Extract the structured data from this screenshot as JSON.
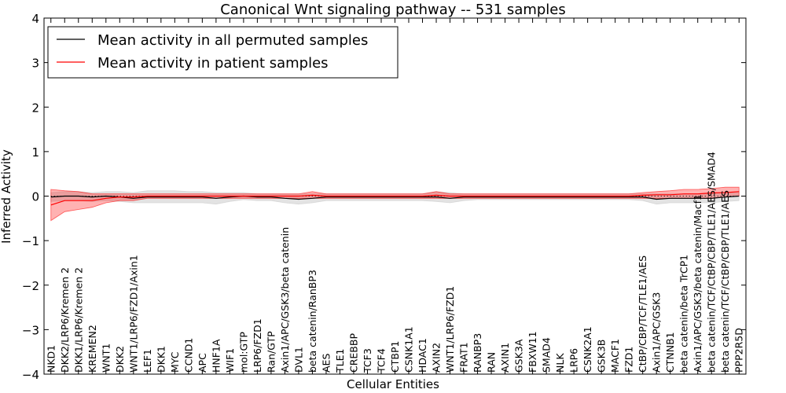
{
  "chart_data": {
    "type": "line",
    "title": "Canonical Wnt signaling pathway -- 531 samples",
    "xlabel": "Cellular Entities",
    "ylabel": "Inferred Activity",
    "ylim": [
      -4,
      4
    ],
    "yticks": [
      "4",
      "3",
      "2",
      "1",
      "0",
      "−1",
      "−2",
      "−3",
      "−4"
    ],
    "grid": false,
    "legend_position": "top-left",
    "categories": [
      "NKD1",
      "DKK2/LRP6/Kremen 2",
      "DKK1/LRP6/Kremen 2",
      "KREMEN2",
      "WNT1",
      "DKK2",
      "WNT1/LRP6/FZD1/Axin1",
      "LEF1",
      "DKK1",
      "MYC",
      "CCND1",
      "APC",
      "HNF1A",
      "WIF1",
      "mol:GTP",
      "LRP6/FZD1",
      "Ran/GTP",
      "Axin1/APC/GSK3/beta catenin",
      "DVL1",
      "beta catenin/RanBP3",
      "AES",
      "TLE1",
      "CREBBP",
      "TCF3",
      "TCF4",
      "CTBP1",
      "CSNK1A1",
      "HDAC1",
      "AXIN2",
      "WNT1/LRP6/FZD1",
      "FRAT1",
      "RANBP3",
      "RAN",
      "AXIN1",
      "GSK3A",
      "FBXW11",
      "SMAD4",
      "NLK",
      "LRP6",
      "CSNK2A1",
      "GSK3B",
      "MACF1",
      "FZD1",
      "CtBP/CBP/TCF/TLE1/AES",
      "Axin1/APC/GSK3",
      "CTNNB1",
      "beta catenin/beta TrCP1",
      "Axin1/APC/GSK3/beta catenin/Macf1",
      "beta catenin/TCF/CtBP/CBP/TLE1/AES/SMAD4",
      "beta catenin/TCF/CtBP/CBP/TLE1/AES",
      "PPP2R5D"
    ],
    "series": [
      {
        "name": "Mean activity in all permuted samples",
        "color": "#000000",
        "values": [
          -0.02,
          0.0,
          0.0,
          -0.02,
          0.0,
          -0.02,
          -0.05,
          -0.02,
          -0.02,
          -0.02,
          -0.02,
          -0.02,
          -0.05,
          -0.02,
          0.0,
          -0.02,
          -0.02,
          -0.05,
          -0.07,
          -0.05,
          -0.02,
          -0.02,
          -0.02,
          -0.02,
          -0.02,
          -0.02,
          -0.02,
          -0.02,
          -0.02,
          -0.05,
          -0.02,
          -0.02,
          -0.02,
          -0.02,
          -0.02,
          -0.02,
          -0.02,
          -0.02,
          -0.02,
          -0.02,
          -0.02,
          -0.02,
          -0.02,
          -0.02,
          -0.07,
          -0.05,
          -0.05,
          -0.05,
          -0.05,
          -0.02,
          0.0
        ],
        "band_upper": [
          0.08,
          0.1,
          0.1,
          0.08,
          0.1,
          0.1,
          0.08,
          0.12,
          0.12,
          0.12,
          0.1,
          0.1,
          0.08,
          0.08,
          0.08,
          0.05,
          0.05,
          0.05,
          0.05,
          0.05,
          0.05,
          0.05,
          0.05,
          0.05,
          0.05,
          0.05,
          0.05,
          0.05,
          0.1,
          0.08,
          0.05,
          0.05,
          0.05,
          0.05,
          0.05,
          0.05,
          0.05,
          0.05,
          0.05,
          0.05,
          0.05,
          0.05,
          0.05,
          0.05,
          0.05,
          0.05,
          0.05,
          0.05,
          0.05,
          0.05,
          0.1
        ],
        "band_lower": [
          -0.12,
          -0.1,
          -0.1,
          -0.12,
          -0.1,
          -0.12,
          -0.15,
          -0.15,
          -0.15,
          -0.15,
          -0.15,
          -0.15,
          -0.18,
          -0.12,
          -0.08,
          -0.1,
          -0.1,
          -0.15,
          -0.18,
          -0.15,
          -0.1,
          -0.1,
          -0.1,
          -0.1,
          -0.1,
          -0.1,
          -0.1,
          -0.1,
          -0.12,
          -0.15,
          -0.1,
          -0.08,
          -0.08,
          -0.08,
          -0.08,
          -0.08,
          -0.08,
          -0.08,
          -0.08,
          -0.08,
          -0.08,
          -0.08,
          -0.08,
          -0.1,
          -0.18,
          -0.15,
          -0.15,
          -0.15,
          -0.15,
          -0.12,
          -0.1
        ]
      },
      {
        "name": "Mean activity in patient samples",
        "color": "#ff0000",
        "values": [
          -0.2,
          -0.1,
          -0.1,
          -0.1,
          -0.05,
          -0.02,
          -0.02,
          0.0,
          0.0,
          0.0,
          0.0,
          0.0,
          0.0,
          0.0,
          0.0,
          0.0,
          0.0,
          0.0,
          0.0,
          0.02,
          0.0,
          0.0,
          0.0,
          0.0,
          0.0,
          0.0,
          0.0,
          0.0,
          0.02,
          0.0,
          0.0,
          0.0,
          0.0,
          0.0,
          0.0,
          0.0,
          0.0,
          0.0,
          0.0,
          0.0,
          0.0,
          0.0,
          0.0,
          0.02,
          0.03,
          0.03,
          0.05,
          0.05,
          0.07,
          0.08,
          0.1
        ],
        "band_upper": [
          0.15,
          0.12,
          0.1,
          0.05,
          0.05,
          0.05,
          0.05,
          0.05,
          0.05,
          0.05,
          0.05,
          0.05,
          0.05,
          0.05,
          0.05,
          0.05,
          0.05,
          0.05,
          0.05,
          0.1,
          0.05,
          0.05,
          0.05,
          0.05,
          0.05,
          0.05,
          0.05,
          0.05,
          0.1,
          0.05,
          0.05,
          0.05,
          0.05,
          0.05,
          0.05,
          0.05,
          0.05,
          0.05,
          0.05,
          0.05,
          0.05,
          0.05,
          0.05,
          0.08,
          0.1,
          0.12,
          0.15,
          0.15,
          0.17,
          0.2,
          0.2
        ],
        "band_lower": [
          -0.55,
          -0.35,
          -0.3,
          -0.25,
          -0.15,
          -0.1,
          -0.1,
          -0.05,
          -0.05,
          -0.05,
          -0.05,
          -0.05,
          -0.05,
          -0.05,
          -0.05,
          -0.05,
          -0.05,
          -0.05,
          -0.05,
          -0.05,
          -0.05,
          -0.05,
          -0.05,
          -0.05,
          -0.05,
          -0.05,
          -0.05,
          -0.05,
          -0.05,
          -0.05,
          -0.05,
          -0.05,
          -0.05,
          -0.05,
          -0.05,
          -0.05,
          -0.05,
          -0.05,
          -0.05,
          -0.05,
          -0.05,
          -0.05,
          -0.05,
          -0.05,
          -0.05,
          -0.05,
          -0.05,
          -0.05,
          -0.05,
          -0.02,
          0.0
        ]
      }
    ]
  }
}
